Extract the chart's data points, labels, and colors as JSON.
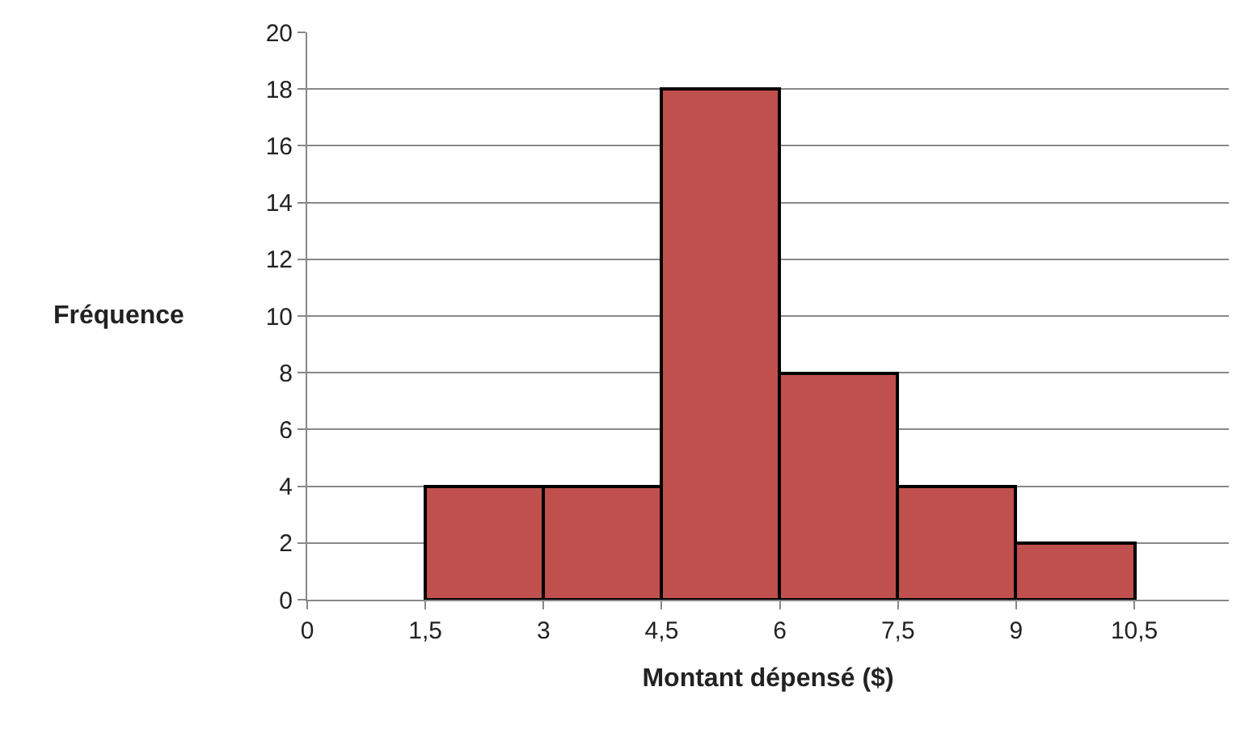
{
  "chart_data": {
    "type": "histogram",
    "xlabel": "Montant dépensé ($)",
    "ylabel": "Fréquence",
    "bins": [
      1.5,
      3,
      4.5,
      6,
      7.5,
      9,
      10.5
    ],
    "values": [
      4,
      4,
      18,
      8,
      4,
      2
    ],
    "color": "#c0504d",
    "xlim": [
      0,
      11.7
    ],
    "xticks": [
      0,
      {
        "value": 1.5,
        "label": "1,5"
      },
      3,
      {
        "value": 4.5,
        "label": "4,5"
      },
      6,
      {
        "value": 7.5,
        "label": "7,5"
      },
      9,
      {
        "value": 10.5,
        "label": "10,5"
      }
    ],
    "ylim": [
      0,
      20
    ],
    "yticks": [
      0,
      2,
      4,
      6,
      8,
      10,
      12,
      14,
      16,
      18,
      20
    ],
    "grid": "y"
  }
}
